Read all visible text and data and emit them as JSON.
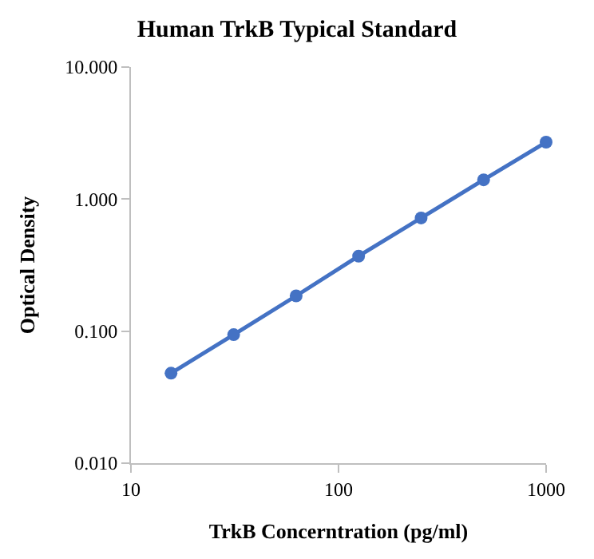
{
  "chart_data": {
    "type": "line",
    "title": "Human TrkB Typical Standard",
    "xlabel": "TrkB Concerntration (pg/ml)",
    "ylabel": "Optical Density",
    "x": [
      15.6,
      31.25,
      62.5,
      125,
      250,
      500,
      1000
    ],
    "series": [
      {
        "color": "#4472c4",
        "values": [
          0.048,
          0.094,
          0.185,
          0.37,
          0.72,
          1.4,
          2.7
        ]
      }
    ],
    "log": "xy",
    "xlim": [
      10,
      1000
    ],
    "ylim": [
      0.01,
      10
    ],
    "xticks": [
      10,
      100,
      1000
    ],
    "yticks": [
      {
        "value": 0.01,
        "label": "0.010"
      },
      {
        "value": 0.1,
        "label": "0.100"
      },
      {
        "value": 1,
        "label": "1.000"
      },
      {
        "value": 10,
        "label": "10.000"
      }
    ],
    "legend": false,
    "marker": "circle",
    "line_style": "solid"
  }
}
